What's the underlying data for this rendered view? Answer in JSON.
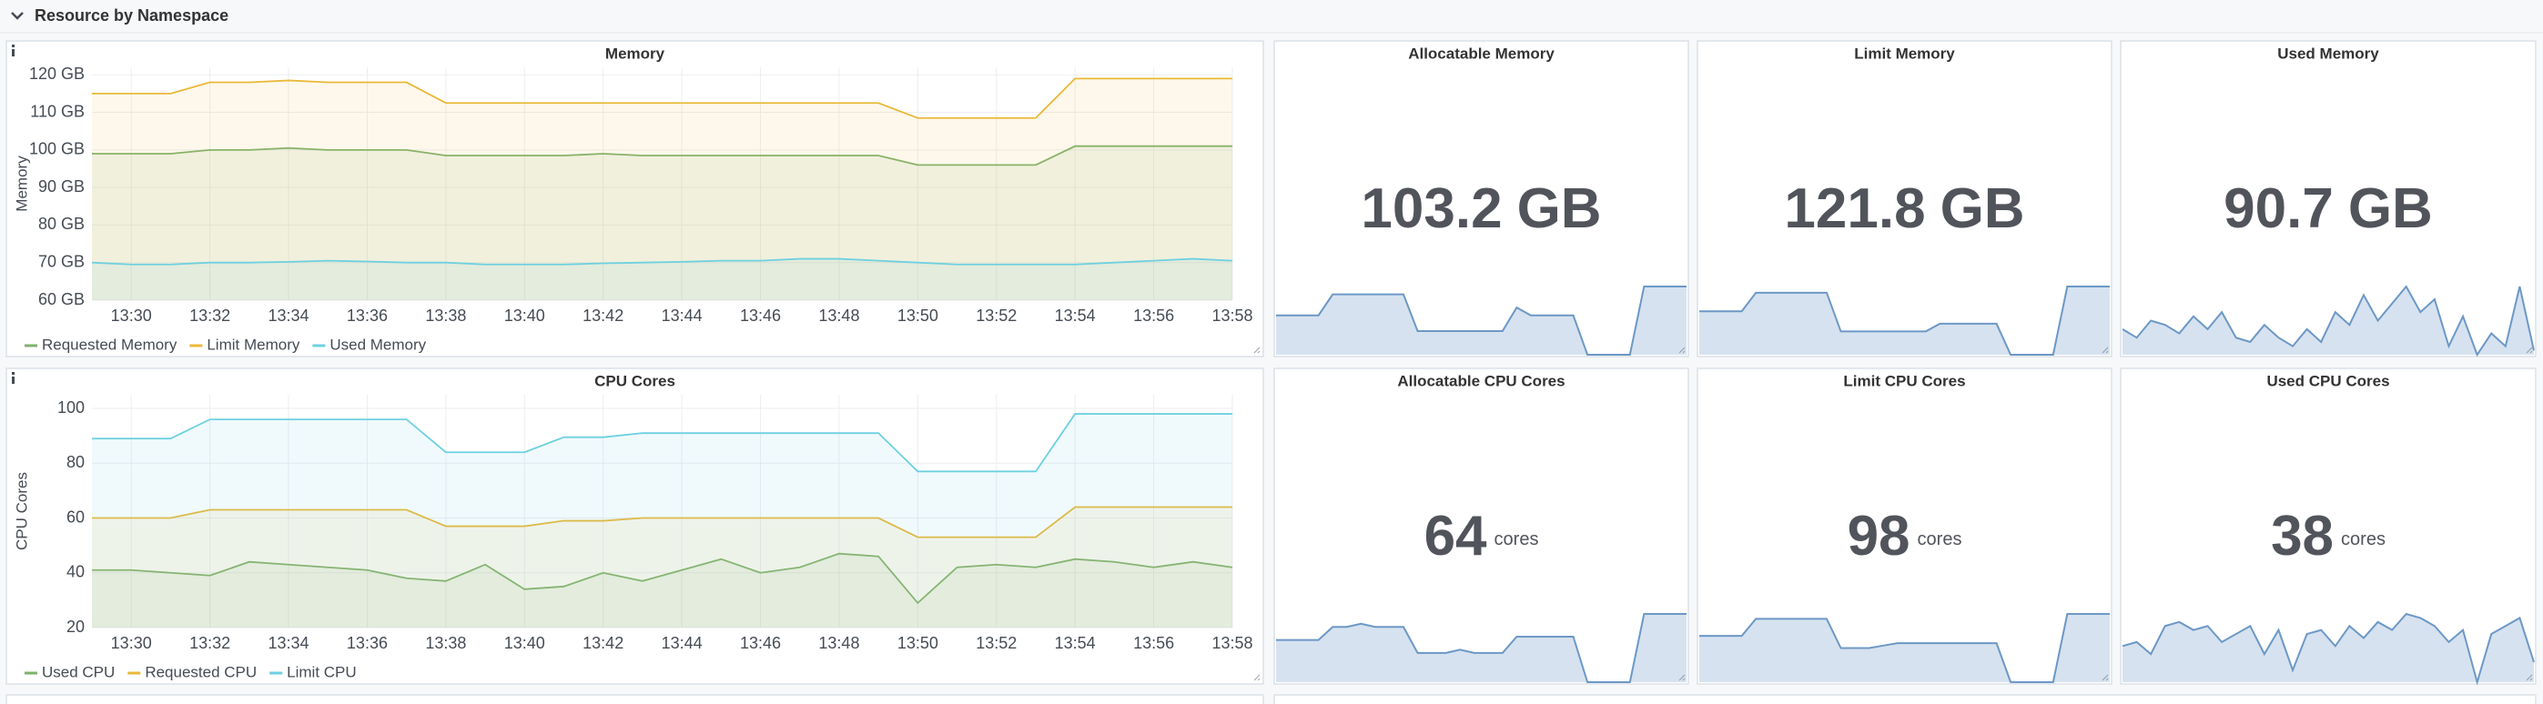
{
  "section_title": "Resource by Namespace",
  "chart_data": [
    {
      "type": "line",
      "title": "Memory",
      "y_label": "Memory",
      "x": [
        "13:29",
        "13:30",
        "13:31",
        "13:32",
        "13:33",
        "13:34",
        "13:35",
        "13:36",
        "13:37",
        "13:38",
        "13:39",
        "13:40",
        "13:41",
        "13:42",
        "13:43",
        "13:44",
        "13:45",
        "13:46",
        "13:47",
        "13:48",
        "13:49",
        "13:50",
        "13:51",
        "13:52",
        "13:53",
        "13:54",
        "13:55",
        "13:56",
        "13:57",
        "13:58"
      ],
      "xlim": [
        "13:29",
        "13:58"
      ],
      "xticks": [
        "13:30",
        "13:32",
        "13:34",
        "13:36",
        "13:38",
        "13:40",
        "13:42",
        "13:44",
        "13:46",
        "13:48",
        "13:50",
        "13:52",
        "13:54",
        "13:56",
        "13:58"
      ],
      "ylim": [
        60,
        122
      ],
      "yticks": [
        {
          "value": 60,
          "label": "60 GB"
        },
        {
          "value": 70,
          "label": "70 GB"
        },
        {
          "value": 80,
          "label": "80 GB"
        },
        {
          "value": 90,
          "label": "90 GB"
        },
        {
          "value": 100,
          "label": "100 GB"
        },
        {
          "value": 110,
          "label": "110 GB"
        },
        {
          "value": 120,
          "label": "120 GB"
        }
      ],
      "grid": true,
      "fill": true,
      "legend": "bottom",
      "series": [
        {
          "name": "Requested Memory",
          "color": "#7eb26d",
          "values": [
            99,
            99,
            99,
            100,
            100,
            100.5,
            100,
            100,
            100,
            98.5,
            98.5,
            98.5,
            98.5,
            99,
            98.5,
            98.5,
            98.5,
            98.5,
            98.5,
            98.5,
            98.5,
            96,
            96,
            96,
            96,
            101,
            101,
            101,
            101,
            101
          ]
        },
        {
          "name": "Limit Memory",
          "color": "#eab839",
          "values": [
            115,
            115,
            115,
            118,
            118,
            118.5,
            118,
            118,
            118,
            112.5,
            112.5,
            112.5,
            112.5,
            112.5,
            112.5,
            112.5,
            112.5,
            112.5,
            112.5,
            112.5,
            112.5,
            108.5,
            108.5,
            108.5,
            108.5,
            119,
            119,
            119,
            119,
            119
          ]
        },
        {
          "name": "Used Memory",
          "color": "#6ed0e0",
          "values": [
            70,
            69.5,
            69.5,
            70,
            70,
            70.2,
            70.5,
            70.3,
            70,
            70,
            69.5,
            69.5,
            69.5,
            69.8,
            70,
            70.2,
            70.5,
            70.5,
            71,
            71,
            70.5,
            70,
            69.5,
            69.5,
            69.5,
            69.5,
            70,
            70.5,
            71,
            70.5
          ]
        }
      ]
    },
    {
      "type": "stat",
      "title": "Allocatable Memory",
      "value": 103.2,
      "unit": "GB",
      "unit_small": false,
      "color": "#6c98c6",
      "sparkline": [
        95.5,
        95.5,
        95.5,
        95.5,
        99.5,
        99.5,
        99.5,
        99.5,
        99.5,
        99.5,
        92.5,
        92.5,
        92.5,
        92.5,
        92.5,
        92.5,
        92.5,
        97,
        95.5,
        95.5,
        95.5,
        95.5,
        88,
        88,
        88,
        88,
        101,
        101,
        101,
        101
      ]
    },
    {
      "type": "stat",
      "title": "Limit Memory",
      "value": 121.8,
      "unit": "GB",
      "unit_small": false,
      "color": "#6c98c6",
      "sparkline": [
        114,
        114,
        114,
        114,
        120,
        120,
        120,
        120,
        120,
        120,
        107.5,
        107.5,
        107.5,
        107.5,
        107.5,
        107.5,
        107.5,
        110,
        110,
        110,
        110,
        110,
        100,
        100,
        100,
        100,
        122,
        122,
        122,
        122
      ]
    },
    {
      "type": "stat",
      "title": "Used Memory",
      "value": 90.7,
      "unit": "GB",
      "unit_small": false,
      "color": "#6c98c6",
      "sparkline": [
        76,
        74,
        78,
        77,
        75,
        79,
        76,
        80,
        74,
        73,
        77,
        74,
        72,
        76,
        73,
        80,
        77,
        84,
        78,
        82,
        86,
        80,
        83,
        72,
        79,
        70,
        75,
        72,
        86,
        71
      ]
    },
    {
      "type": "line",
      "title": "CPU Cores",
      "y_label": "CPU Cores",
      "x": [
        "13:29",
        "13:30",
        "13:31",
        "13:32",
        "13:33",
        "13:34",
        "13:35",
        "13:36",
        "13:37",
        "13:38",
        "13:39",
        "13:40",
        "13:41",
        "13:42",
        "13:43",
        "13:44",
        "13:45",
        "13:46",
        "13:47",
        "13:48",
        "13:49",
        "13:50",
        "13:51",
        "13:52",
        "13:53",
        "13:54",
        "13:55",
        "13:56",
        "13:57",
        "13:58"
      ],
      "xlim": [
        "13:29",
        "13:58"
      ],
      "xticks": [
        "13:30",
        "13:32",
        "13:34",
        "13:36",
        "13:38",
        "13:40",
        "13:42",
        "13:44",
        "13:46",
        "13:48",
        "13:50",
        "13:52",
        "13:54",
        "13:56",
        "13:58"
      ],
      "ylim": [
        20,
        105
      ],
      "yticks": [
        20,
        40,
        60,
        80,
        100
      ],
      "grid": true,
      "fill": true,
      "legend": "bottom",
      "series": [
        {
          "name": "Used CPU",
          "color": "#7eb26d",
          "values": [
            41,
            41,
            40,
            39,
            44,
            43,
            42,
            41,
            38,
            37,
            43,
            34,
            35,
            40,
            37,
            41,
            45,
            40,
            42,
            47,
            46,
            29,
            42,
            43,
            42,
            45,
            44,
            42,
            44,
            42
          ]
        },
        {
          "name": "Requested CPU",
          "color": "#eab839",
          "values": [
            60,
            60,
            60,
            63,
            63,
            63,
            63,
            63,
            63,
            57,
            57,
            57,
            59,
            59,
            60,
            60,
            60,
            60,
            60,
            60,
            60,
            53,
            53,
            53,
            53,
            64,
            64,
            64,
            64,
            64
          ]
        },
        {
          "name": "Limit CPU",
          "color": "#6ed0e0",
          "values": [
            89,
            89,
            89,
            96,
            96,
            96,
            96,
            96,
            96,
            84,
            84,
            84,
            89.5,
            89.5,
            91,
            91,
            91,
            91,
            91,
            91,
            91,
            77,
            77,
            77,
            77,
            98,
            98,
            98,
            98,
            98
          ]
        }
      ]
    },
    {
      "type": "stat",
      "title": "Allocatable CPU Cores",
      "value": 64,
      "unit": "cores",
      "unit_small": true,
      "color": "#6c98c6",
      "sparkline": [
        40,
        40,
        40,
        40,
        44,
        44,
        45,
        44,
        44,
        44,
        36,
        36,
        36,
        37,
        36,
        36,
        36,
        41,
        41,
        41,
        41,
        41,
        27,
        27,
        27,
        27,
        48,
        48,
        48,
        48
      ]
    },
    {
      "type": "stat",
      "title": "Limit CPU Cores",
      "value": 98,
      "unit": "cores",
      "unit_small": true,
      "color": "#6c98c6",
      "sparkline": [
        89,
        89,
        89,
        89,
        96,
        96,
        96,
        96,
        96,
        96,
        84,
        84,
        84,
        85,
        86,
        86,
        86,
        86,
        86,
        86,
        86,
        86,
        70,
        70,
        70,
        70,
        98,
        98,
        98,
        98
      ]
    },
    {
      "type": "stat",
      "title": "Used CPU Cores",
      "value": 38,
      "unit": "cores",
      "unit_small": true,
      "color": "#6c98c6",
      "sparkline": [
        39,
        40,
        37,
        44,
        45,
        43,
        44,
        40,
        42,
        44,
        37,
        43,
        33,
        42,
        43,
        39,
        44,
        41,
        45,
        43,
        47,
        46,
        44,
        40,
        43,
        30,
        42,
        44,
        46,
        35
      ]
    }
  ]
}
